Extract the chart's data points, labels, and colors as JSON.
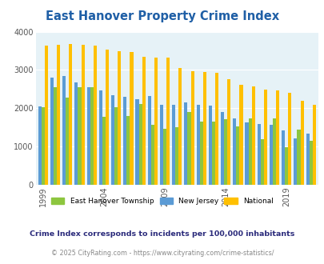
{
  "title": "East Hanover Property Crime Index",
  "years": [
    1999,
    2000,
    2001,
    2002,
    2003,
    2004,
    2005,
    2006,
    2007,
    2008,
    2009,
    2010,
    2011,
    2012,
    2013,
    2014,
    2015,
    2016,
    2017,
    2018,
    2019,
    2020,
    2021
  ],
  "east_hanover": [
    2030,
    2560,
    2270,
    2560,
    2540,
    1780,
    2020,
    1800,
    2110,
    1560,
    1460,
    1510,
    1900,
    1660,
    1650,
    1720,
    1520,
    1730,
    1200,
    1730,
    980,
    1440,
    1140
  ],
  "new_jersey": [
    2040,
    2790,
    2840,
    2670,
    2560,
    2460,
    2350,
    2300,
    2230,
    2310,
    2100,
    2100,
    2150,
    2100,
    2060,
    1900,
    1730,
    1640,
    1580,
    1560,
    1430,
    1220,
    1340
  ],
  "national": [
    3640,
    3660,
    3670,
    3660,
    3630,
    3530,
    3480,
    3460,
    3340,
    3330,
    3320,
    3050,
    2970,
    2950,
    2920,
    2760,
    2610,
    2580,
    2490,
    2460,
    2400,
    2200,
    2100
  ],
  "bar_colors": {
    "east_hanover": "#8dc63f",
    "new_jersey": "#5b9bd5",
    "national": "#ffc000"
  },
  "ylim": [
    0,
    4000
  ],
  "yticks": [
    0,
    1000,
    2000,
    3000,
    4000
  ],
  "xtick_labels": [
    "1999",
    "2004",
    "2009",
    "2014",
    "2019"
  ],
  "xtick_positions": [
    0,
    5,
    10,
    15,
    20
  ],
  "background_color": "#e6f2f7",
  "title_color": "#1f5fa6",
  "title_fontsize": 10.5,
  "legend_labels": [
    "East Hanover Township",
    "New Jersey",
    "National"
  ],
  "footnote1": "Crime Index corresponds to incidents per 100,000 inhabitants",
  "footnote2": "© 2025 CityRating.com - https://www.cityrating.com/crime-statistics/",
  "footnote1_color": "#2c2c7c",
  "footnote2_color": "#888888",
  "grid_color": "#ffffff",
  "bar_width": 0.27
}
